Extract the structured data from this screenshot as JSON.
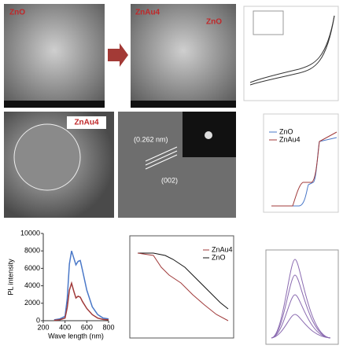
{
  "image_labels": {
    "sem_left": "ZnO",
    "sem_right": "ZnAu4",
    "sem_right_inset": "ZnO",
    "tem": "ZnAu4",
    "hrtem_spacing": "(0.262 nm)",
    "hrtem_plane": "(002)",
    "kinetics_legend": [
      "ZnAu4",
      "ZnO"
    ],
    "absorbance_legend": [
      "ZnO",
      "ZnAu4"
    ]
  },
  "chart_data": [
    {
      "type": "line",
      "ylabel": "PL intensity",
      "xlabel": "Wave length (nm)",
      "x": [
        300,
        350,
        400,
        420,
        440,
        460,
        480,
        500,
        520,
        540,
        560,
        600,
        650,
        700,
        750,
        800
      ],
      "series": [
        {
          "color": "#4a78c8",
          "values": [
            100,
            200,
            500,
            2500,
            6500,
            8000,
            7200,
            6400,
            6800,
            6900,
            5800,
            3500,
            1600,
            700,
            300,
            200
          ]
        },
        {
          "color": "#a03a3a",
          "values": [
            50,
            100,
            300,
            1500,
            3500,
            4300,
            3400,
            2600,
            2800,
            2700,
            2200,
            1400,
            700,
            300,
            150,
            100
          ]
        }
      ],
      "xlim": [
        200,
        800
      ],
      "xticks": [
        200,
        400,
        600,
        800
      ],
      "ylim": [
        0,
        10000
      ],
      "yticks": [
        0,
        2000,
        4000,
        6000,
        8000,
        10000
      ]
    }
  ]
}
